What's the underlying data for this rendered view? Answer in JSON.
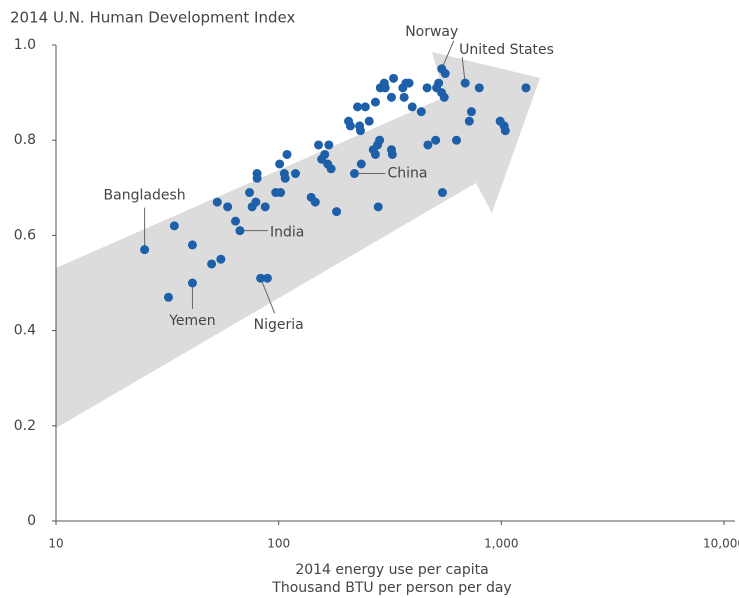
{
  "chart_data": {
    "type": "scatter",
    "title": "2014 U.N. Human Development Index",
    "x_label": [
      "2014 energy use per capita",
      "Thousand BTU per person per day"
    ],
    "x_scale": "log",
    "color": "#1d5fa9",
    "xlim": [
      10,
      10000
    ],
    "ylim": [
      0,
      1.0
    ],
    "xticks": [
      10,
      100,
      {
        "value": 1000,
        "label": "1,000"
      },
      {
        "value": 10000,
        "label": "10,000"
      }
    ],
    "yticks": [
      0,
      0.2,
      0.4,
      0.6,
      0.8,
      {
        "value": 1.0,
        "label": "1.0"
      }
    ],
    "x": [
      25,
      34,
      32,
      41,
      41,
      53,
      50,
      55,
      64,
      67,
      59,
      74,
      76,
      79,
      80,
      80,
      87,
      83,
      89,
      97,
      102,
      101,
      109,
      106,
      107,
      119,
      140,
      146,
      151,
      156,
      161,
      166,
      168,
      172,
      182,
      206,
      210,
      226,
      231,
      233,
      245,
      255,
      235,
      219,
      272,
      278,
      266,
      284,
      272,
      280,
      286,
      298,
      301,
      328,
      321,
      321,
      324,
      361,
      366,
      373,
      385,
      398,
      437,
      464,
      468,
      507,
      512,
      523,
      539,
      540,
      554,
      560,
      544,
      629,
      688,
      718,
      734,
      796,
      988,
      1030,
      1042,
      1290
    ],
    "y": [
      0.57,
      0.62,
      0.47,
      0.58,
      0.5,
      0.67,
      0.54,
      0.55,
      0.63,
      0.61,
      0.66,
      0.69,
      0.66,
      0.67,
      0.73,
      0.72,
      0.66,
      0.51,
      0.51,
      0.69,
      0.69,
      0.75,
      0.77,
      0.73,
      0.72,
      0.73,
      0.68,
      0.67,
      0.79,
      0.76,
      0.77,
      0.75,
      0.79,
      0.74,
      0.65,
      0.84,
      0.83,
      0.87,
      0.83,
      0.82,
      0.87,
      0.84,
      0.75,
      0.73,
      0.88,
      0.79,
      0.78,
      0.8,
      0.77,
      0.66,
      0.91,
      0.92,
      0.91,
      0.93,
      0.89,
      0.78,
      0.77,
      0.91,
      0.89,
      0.92,
      0.92,
      0.87,
      0.86,
      0.91,
      0.79,
      0.8,
      0.91,
      0.92,
      0.9,
      0.95,
      0.89,
      0.94,
      0.69,
      0.8,
      0.92,
      0.84,
      0.86,
      0.91,
      0.84,
      0.83,
      0.82,
      0.91
    ],
    "point_labels": [
      "Bangladesh",
      null,
      null,
      null,
      "Yemen",
      null,
      null,
      null,
      null,
      "India",
      null,
      null,
      null,
      null,
      null,
      null,
      null,
      "Nigeria",
      null,
      null,
      null,
      null,
      null,
      null,
      null,
      null,
      null,
      null,
      null,
      null,
      null,
      null,
      null,
      null,
      null,
      null,
      null,
      null,
      null,
      null,
      null,
      null,
      null,
      "China",
      null,
      null,
      null,
      null,
      null,
      null,
      null,
      null,
      null,
      null,
      null,
      null,
      null,
      null,
      null,
      null,
      null,
      null,
      null,
      null,
      null,
      null,
      null,
      null,
      null,
      "Norway",
      null,
      null,
      null,
      null,
      "United States",
      null,
      null,
      null,
      null,
      null,
      null,
      null
    ]
  }
}
